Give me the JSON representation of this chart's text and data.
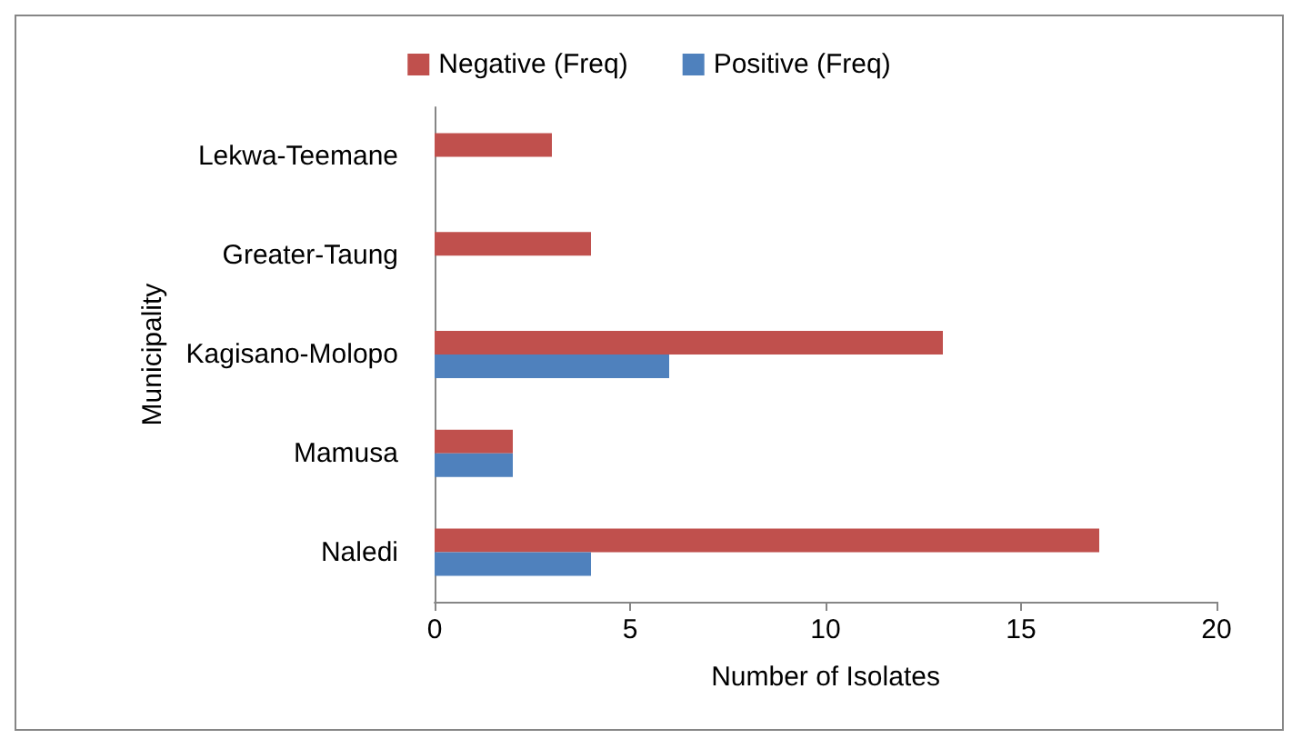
{
  "chart_data": {
    "type": "bar",
    "orientation": "horizontal",
    "xlabel": "Number of Isolates",
    "ylabel": "Municipality",
    "categories": [
      "Lekwa-Teemane",
      "Greater-Taung",
      "Kagisano-Molopo",
      "Mamusa",
      "Naledi"
    ],
    "series": [
      {
        "name": "Negative (Freq)",
        "color": "#c0504d",
        "values": [
          3,
          4,
          13,
          2,
          17
        ]
      },
      {
        "name": "Positive (Freq)",
        "color": "#4f81bd",
        "values": [
          0,
          0,
          6,
          2,
          4
        ]
      }
    ],
    "xlim": [
      0,
      20
    ],
    "xticks": [
      0,
      5,
      10,
      15,
      20
    ],
    "grid": false,
    "legend": "top"
  }
}
